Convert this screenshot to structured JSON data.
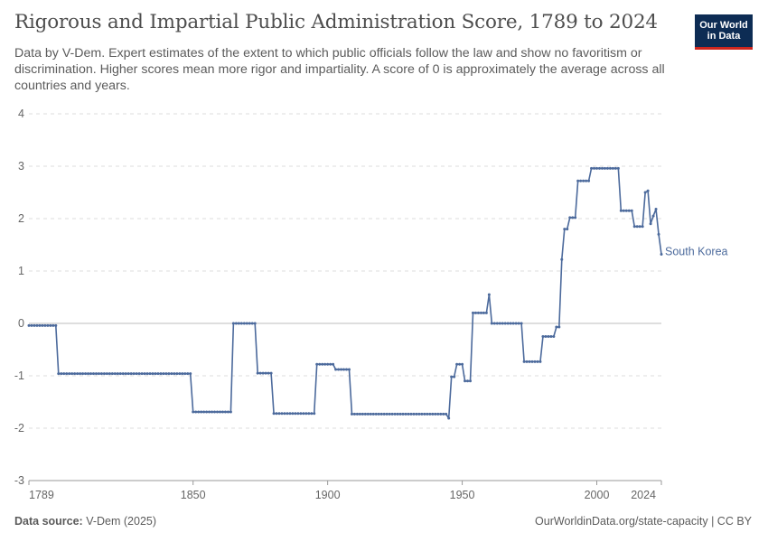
{
  "header": {
    "title": "Rigorous and Impartial Public Administration Score, 1789 to 2024",
    "subtitle": "Data by V-Dem. Expert estimates of the extent to which public officials follow the law and show no favoritism or discrimination. Higher scores mean more rigor and impartiality. A score of 0 is approximately the average across all countries and years."
  },
  "logo": {
    "line1": "Our World",
    "line2": "in Data",
    "bg_color": "#0d2c54",
    "accent_color": "#ce261e"
  },
  "footer": {
    "source_label": "Data source:",
    "source_value": "V-Dem (2025)",
    "link": "OurWorldinData.org/state-capacity",
    "license": "CC BY"
  },
  "chart_data": {
    "type": "line",
    "title": "Rigorous and Impartial Public Administration Score, 1789 to 2024",
    "xlabel": "",
    "ylabel": "",
    "xlim": [
      1789,
      2024
    ],
    "ylim": [
      -3,
      4
    ],
    "x_ticks": [
      "1789",
      "1850",
      "1900",
      "1950",
      "2000",
      "2024"
    ],
    "y_ticks": [
      "-3",
      "-2",
      "-1",
      "0",
      "1",
      "2",
      "3",
      "4"
    ],
    "grid": true,
    "legend_placement": "end-of-line label",
    "series": [
      {
        "name": "South Korea",
        "color": "#4c6a9c",
        "points": [
          [
            1789,
            -0.04
          ],
          [
            1799,
            -0.04
          ],
          [
            1800,
            -0.96
          ],
          [
            1849,
            -0.96
          ],
          [
            1850,
            -1.69
          ],
          [
            1864,
            -1.69
          ],
          [
            1865,
            0.0
          ],
          [
            1873,
            0.0
          ],
          [
            1874,
            -0.95
          ],
          [
            1879,
            -0.95
          ],
          [
            1880,
            -1.72
          ],
          [
            1895,
            -1.72
          ],
          [
            1896,
            -0.78
          ],
          [
            1902,
            -0.78
          ],
          [
            1903,
            -0.88
          ],
          [
            1908,
            -0.88
          ],
          [
            1909,
            -1.73
          ],
          [
            1944,
            -1.73
          ],
          [
            1945,
            -1.81
          ],
          [
            1946,
            -1.02
          ],
          [
            1947,
            -1.02
          ],
          [
            1948,
            -0.78
          ],
          [
            1950,
            -0.78
          ],
          [
            1951,
            -1.1
          ],
          [
            1953,
            -1.1
          ],
          [
            1954,
            0.2
          ],
          [
            1959,
            0.2
          ],
          [
            1960,
            0.55
          ],
          [
            1961,
            0.0
          ],
          [
            1972,
            0.0
          ],
          [
            1973,
            -0.73
          ],
          [
            1979,
            -0.73
          ],
          [
            1980,
            -0.25
          ],
          [
            1984,
            -0.25
          ],
          [
            1985,
            -0.07
          ],
          [
            1986,
            -0.07
          ],
          [
            1987,
            1.22
          ],
          [
            1988,
            1.8
          ],
          [
            1989,
            1.8
          ],
          [
            1990,
            2.02
          ],
          [
            1992,
            2.02
          ],
          [
            1993,
            2.72
          ],
          [
            1997,
            2.72
          ],
          [
            1998,
            2.96
          ],
          [
            2008,
            2.96
          ],
          [
            2009,
            2.15
          ],
          [
            2013,
            2.15
          ],
          [
            2014,
            1.85
          ],
          [
            2017,
            1.85
          ],
          [
            2018,
            2.5
          ],
          [
            2019,
            2.53
          ],
          [
            2020,
            1.9
          ],
          [
            2021,
            2.05
          ],
          [
            2022,
            2.18
          ],
          [
            2023,
            1.7
          ],
          [
            2024,
            1.32
          ]
        ]
      }
    ]
  }
}
